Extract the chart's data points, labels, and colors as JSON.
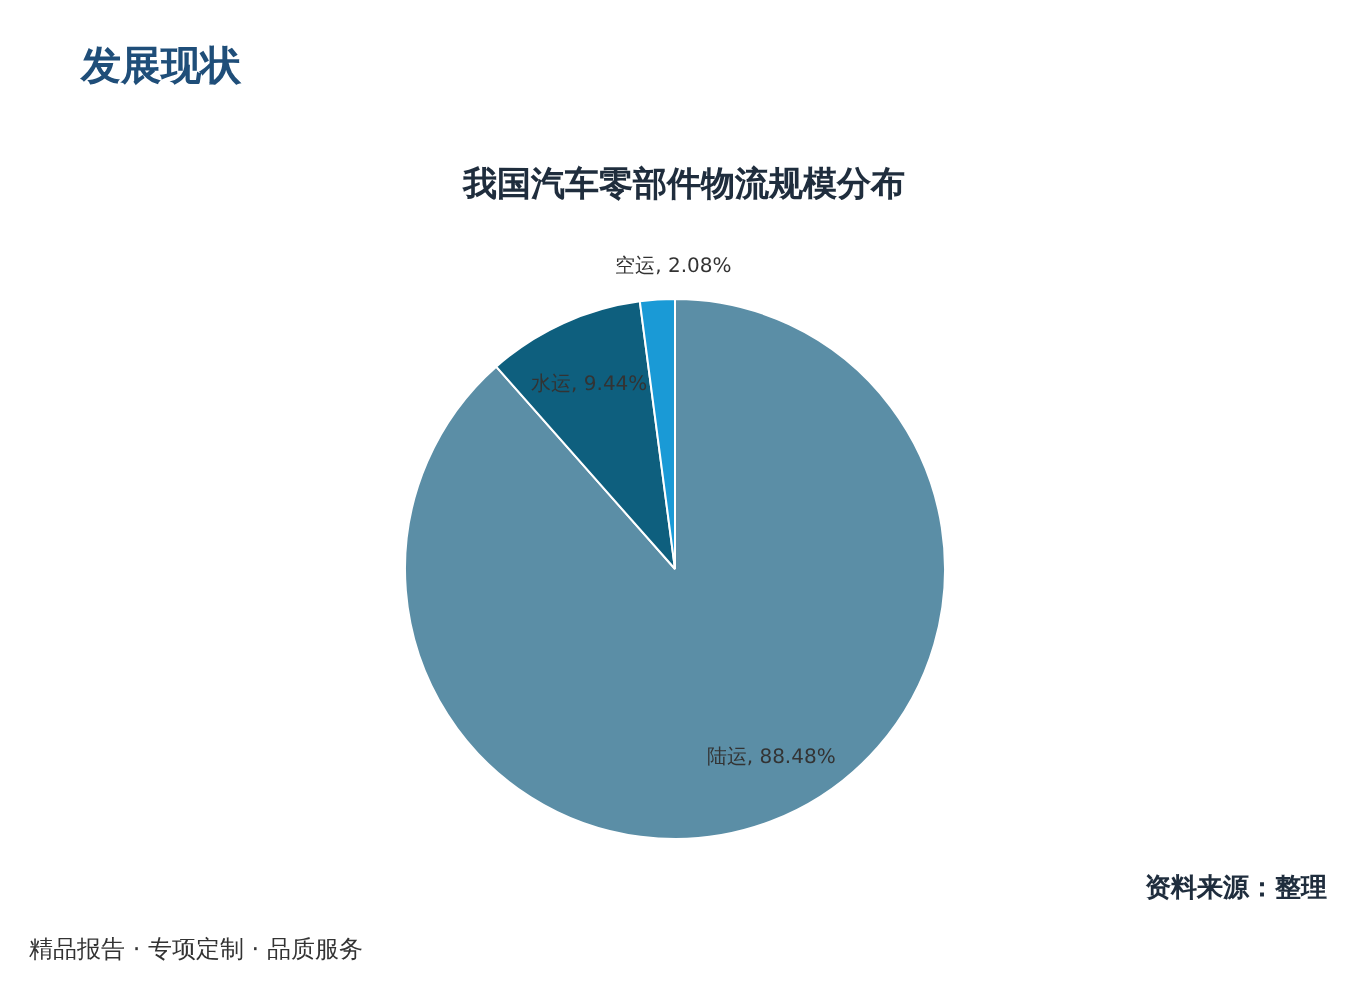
{
  "chart_data": {
    "type": "pie",
    "title": "我国汽车零部件物流规模分布",
    "categories": [
      "陆运",
      "水运",
      "空运"
    ],
    "values": [
      88.48,
      9.44,
      2.08
    ],
    "colors": [
      "#5b8ea6",
      "#0e5f7e",
      "#1a9ad6"
    ],
    "value_labels": [
      ", 88.48%",
      ", 9.44%",
      ", 2.08%"
    ],
    "annotations": [
      "发展现状",
      "精品报告 · 专项定制 · 品质服务",
      "资料来源：整理"
    ]
  }
}
